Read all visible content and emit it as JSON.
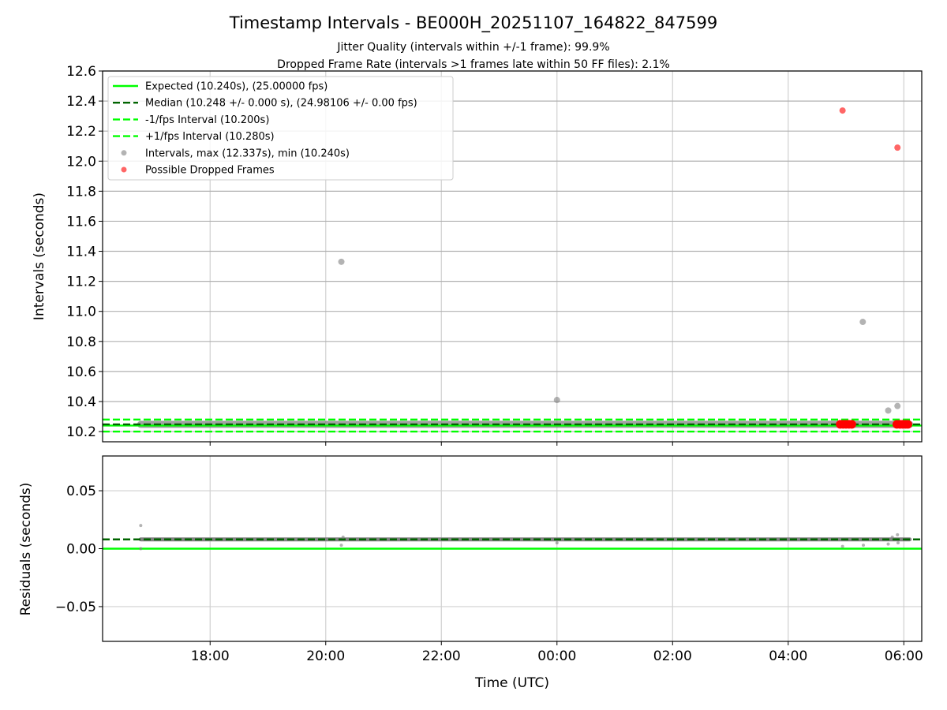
{
  "chart_data": [
    {
      "type": "scatter",
      "title": "Timestamp Intervals - BE000H_20251107_164822_847599",
      "subtitle_lines": [
        "Jitter Quality (intervals within +/-1 frame): 99.9%",
        "Dropped Frame Rate (intervals >1 frames late within 50 FF files): 2.1%"
      ],
      "xlabel": "",
      "ylabel": "Intervals (seconds)",
      "x_units": "hours (UTC, continuing past 24 into next day)",
      "xlim": [
        16.14,
        30.31
      ],
      "ylim": [
        10.132,
        12.6
      ],
      "yticks": [
        10.2,
        10.4,
        10.6,
        10.8,
        11.0,
        11.2,
        11.4,
        11.6,
        11.8,
        12.0,
        12.2,
        12.4,
        12.6
      ],
      "ytick_labels": [
        "10.2",
        "10.4",
        "10.6",
        "10.8",
        "11.0",
        "11.2",
        "11.4",
        "11.6",
        "11.8",
        "12.0",
        "12.2",
        "12.4",
        "12.6"
      ],
      "grid": true,
      "legend_position": "top-left",
      "reference_lines": [
        {
          "name": "Expected (10.240s), (25.00000 fps)",
          "y": 10.24,
          "color": "#00ff00",
          "style": "solid"
        },
        {
          "name": "Median (10.248 +/- 0.000 s), (24.98106 +/- 0.00 fps)",
          "y": 10.248,
          "color": "#006400",
          "style": "dashed"
        },
        {
          "name": "-1/fps Interval (10.200s)",
          "y": 10.2,
          "color": "#00ff00",
          "style": "dashed"
        },
        {
          "name": "+1/fps Interval (10.280s)",
          "y": 10.28,
          "color": "#00ff00",
          "style": "dashed"
        }
      ],
      "series": [
        {
          "name": "Intervals, max (12.337s), min (10.240s)",
          "color": "#808080",
          "dense_band": {
            "x_start": 16.8,
            "x_end": 30.1,
            "y": 10.248
          },
          "points": [
            [
              20.27,
              11.33
            ],
            [
              24.0,
              10.41
            ],
            [
              29.29,
              10.93
            ],
            [
              29.73,
              10.34
            ],
            [
              29.89,
              10.37
            ]
          ]
        },
        {
          "name": "Possible Dropped Frames",
          "color": "#ff0000",
          "points": [
            [
              28.94,
              12.337
            ],
            [
              29.89,
              12.09
            ],
            [
              28.9,
              10.248
            ],
            [
              28.95,
              10.248
            ],
            [
              29.0,
              10.248
            ],
            [
              29.05,
              10.248
            ],
            [
              29.1,
              10.248
            ],
            [
              29.88,
              10.248
            ],
            [
              29.93,
              10.248
            ],
            [
              29.98,
              10.248
            ],
            [
              30.03,
              10.248
            ],
            [
              30.07,
              10.248
            ]
          ]
        }
      ]
    },
    {
      "type": "scatter",
      "xlabel": "Time (UTC)",
      "ylabel": "Residuals (seconds)",
      "xlim": [
        16.14,
        30.31
      ],
      "ylim": [
        -0.08,
        0.08
      ],
      "xticks": [
        18,
        20,
        22,
        24,
        26,
        28,
        30
      ],
      "xtick_labels": [
        "18:00",
        "20:00",
        "22:00",
        "00:00",
        "02:00",
        "04:00",
        "06:00"
      ],
      "yticks": [
        0.05,
        0.0,
        -0.05
      ],
      "ytick_labels": [
        "0.05",
        "0.00",
        "−0.05"
      ],
      "grid": true,
      "reference_lines": [
        {
          "name": "expected",
          "y": 0.0,
          "color": "#00ff00",
          "style": "solid"
        },
        {
          "name": "median",
          "y": 0.008,
          "color": "#006400",
          "style": "dashed"
        }
      ],
      "series": [
        {
          "name": "residuals",
          "color": "#808080",
          "dense_band": {
            "x_start": 16.8,
            "x_end": 30.1,
            "y": 0.008
          },
          "points": [
            [
              16.8,
              0.02
            ],
            [
              16.8,
              0.0
            ],
            [
              20.27,
              0.003
            ],
            [
              20.3,
              0.01
            ],
            [
              24.0,
              0.005
            ],
            [
              28.94,
              0.002
            ],
            [
              29.3,
              0.003
            ],
            [
              29.73,
              0.004
            ],
            [
              29.89,
              0.012
            ],
            [
              29.9,
              0.005
            ],
            [
              29.8,
              0.01
            ]
          ]
        }
      ]
    }
  ]
}
